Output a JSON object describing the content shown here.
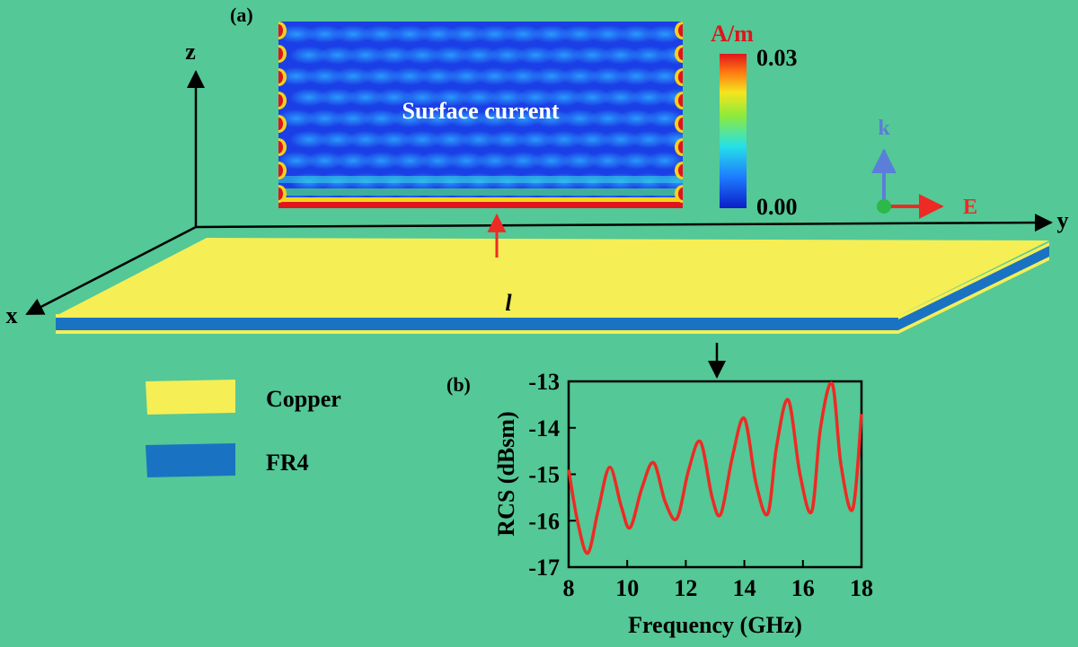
{
  "panel_a": {
    "label": "(a)",
    "overlay_text": "Surface current",
    "colorbar": {
      "unit": "A/m",
      "max": "0.03",
      "min": "0.00"
    }
  },
  "wave_indicator": {
    "k_label": "k",
    "e_label": "E"
  },
  "axes3d": {
    "x": "x",
    "y": "y",
    "z": "z"
  },
  "slab": {
    "length_label": "l"
  },
  "legend": {
    "items": [
      {
        "label": "Copper",
        "color": "#F5EE55"
      },
      {
        "label": "FR4",
        "color": "#1A73C2"
      }
    ]
  },
  "colors": {
    "background": "#54C896",
    "copper": "#F5EE55",
    "fr4": "#1A73C2",
    "curve": "#EE2A24",
    "arrow_red": "#EE2A24",
    "k_arrow": "#5B7ED9",
    "source_dot": "#2DB84A"
  },
  "panel_b": {
    "label": "(b)",
    "chart_data": {
      "type": "line",
      "xlabel": "Frequency (GHz)",
      "ylabel": "RCS (dBsm)",
      "xlim": [
        8,
        18
      ],
      "ylim": [
        -17,
        -13
      ],
      "xticks": [
        8,
        10,
        12,
        14,
        16,
        18
      ],
      "yticks": [
        -13,
        -14,
        -15,
        -16,
        -17
      ],
      "x": [
        8.0,
        8.3,
        8.65,
        9.0,
        9.4,
        9.8,
        10.1,
        10.5,
        10.9,
        11.3,
        11.7,
        12.1,
        12.5,
        12.9,
        13.2,
        13.6,
        14.0,
        14.4,
        14.8,
        15.1,
        15.5,
        15.9,
        16.3,
        16.6,
        17.0,
        17.3,
        17.7,
        18.0
      ],
      "y": [
        -14.9,
        -16.0,
        -16.7,
        -15.8,
        -14.85,
        -15.7,
        -16.15,
        -15.3,
        -14.75,
        -15.6,
        -15.95,
        -14.9,
        -14.3,
        -15.5,
        -15.85,
        -14.6,
        -13.8,
        -15.2,
        -15.85,
        -14.4,
        -13.4,
        -15.0,
        -15.8,
        -14.0,
        -13.05,
        -14.8,
        -15.75,
        -13.7
      ]
    }
  }
}
